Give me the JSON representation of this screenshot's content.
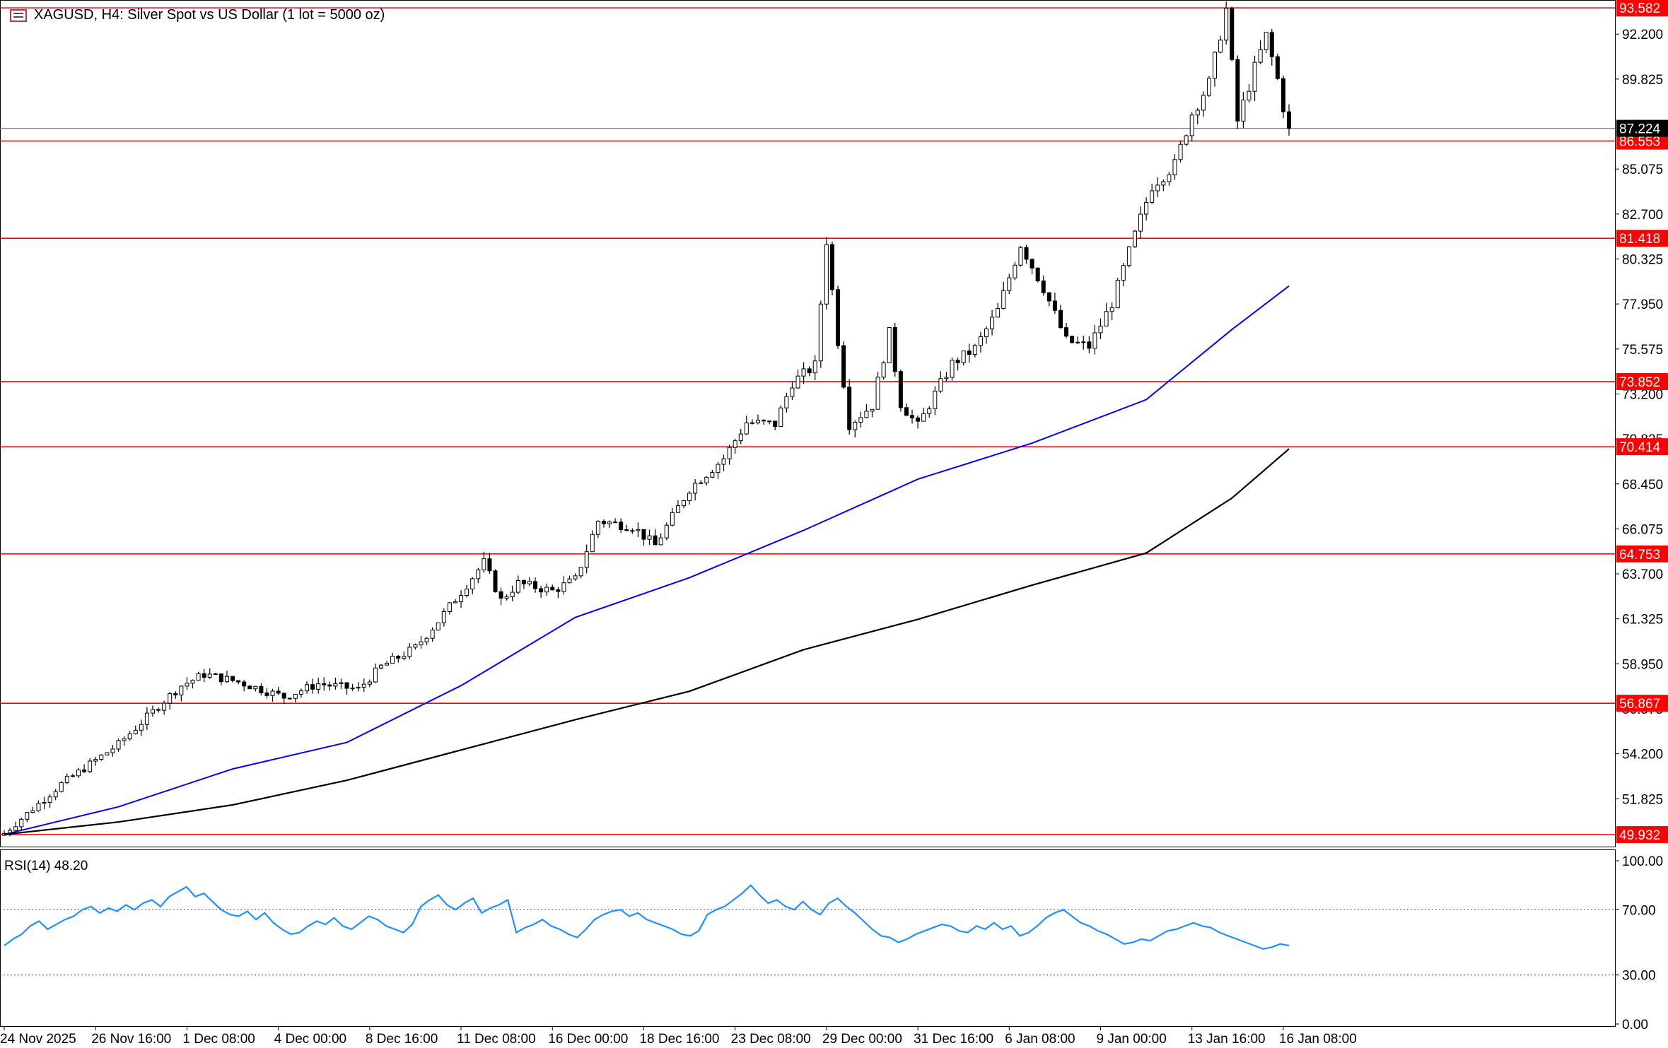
{
  "window": {
    "title": "XAGUSD, H4:  Silver Spot vs US Dollar (1 lot = 5000 oz)",
    "title_icon": "chart-window-icon"
  },
  "colors": {
    "background": "#ffffff",
    "candle": "#000000",
    "level_line": "#ff0000",
    "level_label_bg": "#ff0000",
    "ma_fast": "#0000ff",
    "ma_slow": "#000000",
    "rsi_line": "#1e90ff",
    "price_label_bg": "#000000"
  },
  "chart_data": [
    {
      "type": "candlestick",
      "symbol": "XAGUSD",
      "timeframe": "H4",
      "ylim": [
        49.3,
        94.0
      ],
      "y_ticks": [
        "92.200",
        "89.825",
        "85.075",
        "82.700",
        "80.325",
        "77.950",
        "75.575",
        "73.200",
        "70.825",
        "68.450",
        "66.075",
        "63.700",
        "61.325",
        "58.950",
        "56.575",
        "54.200",
        "51.825"
      ],
      "x_ticks": [
        "24 Nov 2025",
        "26 Nov 16:00",
        "1 Dec 08:00",
        "4 Dec 00:00",
        "8 Dec 16:00",
        "11 Dec 08:00",
        "16 Dec 00:00",
        "18 Dec 16:00",
        "23 Dec 08:00",
        "29 Dec 00:00",
        "31 Dec 16:00",
        "6 Jan 08:00",
        "9 Jan 00:00",
        "13 Jan 16:00",
        "16 Jan 08:00"
      ],
      "x_tick_bars": [
        0,
        16,
        32,
        48,
        64,
        80,
        96,
        112,
        128,
        144,
        160,
        176,
        192,
        208,
        224
      ],
      "total_bars": 226,
      "current_price": "87.224",
      "levels": [
        "93.582",
        "86.553",
        "81.418",
        "73.852",
        "70.414",
        "64.753",
        "56.867",
        "49.932"
      ],
      "close_path": [
        [
          0,
          50.0
        ],
        [
          10,
          52.6
        ],
        [
          20,
          54.7
        ],
        [
          28,
          57.0
        ],
        [
          31,
          57.8
        ],
        [
          35,
          58.4
        ],
        [
          41,
          58.0
        ],
        [
          49,
          57.2
        ],
        [
          55,
          57.9
        ],
        [
          62,
          57.6
        ],
        [
          66,
          58.8
        ],
        [
          72,
          59.8
        ],
        [
          76,
          61.2
        ],
        [
          84,
          64.3
        ],
        [
          87,
          62.3
        ],
        [
          90,
          63.2
        ],
        [
          96,
          62.8
        ],
        [
          100,
          63.4
        ],
        [
          104,
          66.5
        ],
        [
          110,
          66.2
        ],
        [
          114,
          65.2
        ],
        [
          120,
          68.2
        ],
        [
          126,
          69.8
        ],
        [
          130,
          71.7
        ],
        [
          135,
          71.6
        ],
        [
          138,
          73.8
        ],
        [
          142,
          74.7
        ],
        [
          144,
          81.3
        ],
        [
          146,
          76.0
        ],
        [
          148,
          71.6
        ],
        [
          152,
          72.6
        ],
        [
          155,
          76.4
        ],
        [
          157,
          72.7
        ],
        [
          160,
          71.5
        ],
        [
          163,
          73.2
        ],
        [
          166,
          74.8
        ],
        [
          170,
          75.6
        ],
        [
          174,
          77.6
        ],
        [
          178,
          81.1
        ],
        [
          182,
          78.8
        ],
        [
          186,
          76.0
        ],
        [
          190,
          75.7
        ],
        [
          194,
          78.0
        ],
        [
          198,
          81.6
        ],
        [
          201,
          84.2
        ],
        [
          205,
          85.3
        ],
        [
          208,
          88.0
        ],
        [
          211,
          89.6
        ],
        [
          214,
          93.5
        ],
        [
          216,
          87.6
        ],
        [
          219,
          90.4
        ],
        [
          221,
          92.1
        ],
        [
          223,
          89.8
        ],
        [
          225,
          86.9
        ]
      ],
      "ma_fast": {
        "name": "MA 50",
        "points": [
          [
            0,
            49.94
          ],
          [
            20,
            51.4
          ],
          [
            40,
            53.4
          ],
          [
            60,
            54.8
          ],
          [
            80,
            57.8
          ],
          [
            100,
            61.4
          ],
          [
            120,
            63.5
          ],
          [
            140,
            66.0
          ],
          [
            160,
            68.7
          ],
          [
            180,
            70.6
          ],
          [
            200,
            72.9
          ],
          [
            215,
            76.6
          ],
          [
            225,
            78.9
          ]
        ]
      },
      "ma_slow": {
        "name": "MA 200",
        "points": [
          [
            0,
            49.94
          ],
          [
            20,
            50.6
          ],
          [
            40,
            51.5
          ],
          [
            60,
            52.8
          ],
          [
            80,
            54.4
          ],
          [
            100,
            56.0
          ],
          [
            120,
            57.5
          ],
          [
            140,
            59.7
          ],
          [
            160,
            61.3
          ],
          [
            180,
            63.1
          ],
          [
            200,
            64.8
          ],
          [
            215,
            67.7
          ],
          [
            225,
            70.3
          ]
        ]
      }
    },
    {
      "type": "line",
      "indicator": "RSI",
      "label": "RSI(14) 48.20",
      "ylim": [
        0,
        100
      ],
      "y_ticks": [
        "100.00",
        "70.00",
        "30.00",
        "0.00"
      ],
      "levels": [
        70,
        30
      ],
      "values": [
        48,
        52,
        55,
        60,
        63,
        58,
        61,
        64,
        66,
        70,
        72,
        68,
        71,
        69,
        73,
        70,
        74,
        76,
        72,
        78,
        81,
        84,
        78,
        80,
        75,
        70,
        67,
        66,
        69,
        64,
        68,
        62,
        58,
        55,
        56,
        60,
        63,
        61,
        65,
        60,
        58,
        62,
        66,
        64,
        60,
        58,
        56,
        61,
        72,
        76,
        79,
        73,
        70,
        74,
        77,
        68,
        71,
        73,
        76,
        56,
        59,
        61,
        64,
        60,
        58,
        55,
        53,
        58,
        64,
        67,
        69,
        70,
        66,
        68,
        64,
        62,
        60,
        58,
        55,
        54,
        57,
        67,
        70,
        72,
        76,
        80,
        85,
        79,
        74,
        76,
        72,
        70,
        75,
        70,
        67,
        74,
        77,
        72,
        68,
        63,
        58,
        54,
        53,
        50,
        52,
        55,
        57,
        59,
        61,
        60,
        57,
        56,
        60,
        58,
        62,
        58,
        60,
        54,
        56,
        60,
        65,
        68,
        70,
        66,
        62,
        60,
        57,
        55,
        52,
        49,
        50,
        52,
        51,
        54,
        57,
        58,
        60,
        62,
        60,
        59,
        56,
        54,
        52,
        50,
        48,
        46,
        47,
        49,
        48
      ],
      "last_value": 48.2
    }
  ]
}
